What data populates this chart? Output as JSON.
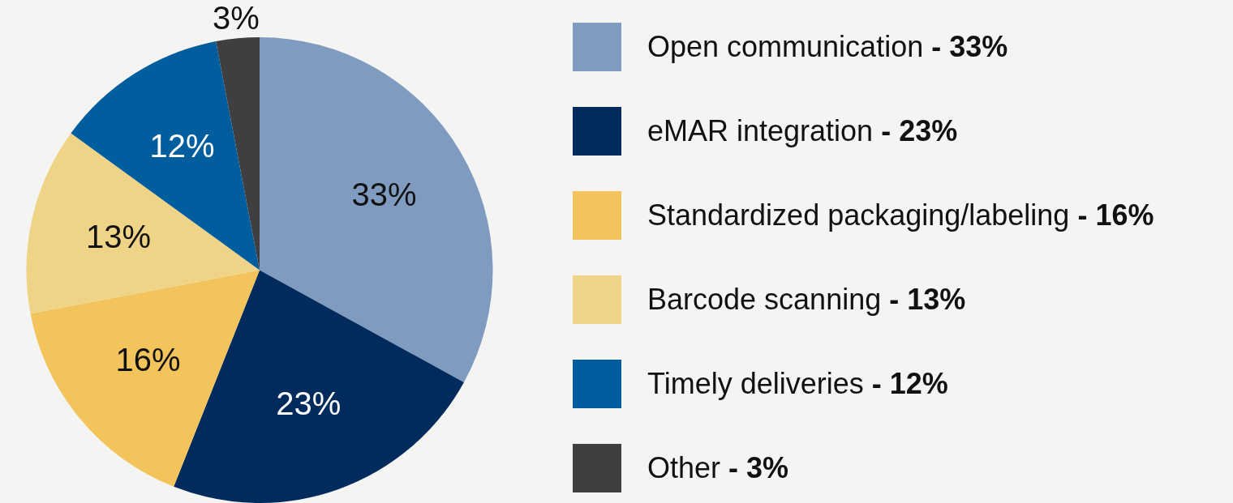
{
  "chart_data": {
    "type": "pie",
    "categories": [
      "Open communication",
      "eMAR integration",
      "Standardized packaging/labeling",
      "Barcode scanning",
      "Timely deliveries",
      "Other"
    ],
    "values": [
      33,
      23,
      16,
      13,
      12,
      3
    ],
    "colors": [
      "#7f9cc0",
      "#002b5c",
      "#f3c45c",
      "#efd488",
      "#005e9e",
      "#3f3f42"
    ],
    "value_labels": [
      "33%",
      "23%",
      "16%",
      "13%",
      "12%",
      "3%"
    ],
    "annotations": [
      "- 33%",
      "- 23%",
      "- 16%",
      "- 13%",
      "- 12%",
      "- 3%"
    ],
    "legend": "right"
  }
}
